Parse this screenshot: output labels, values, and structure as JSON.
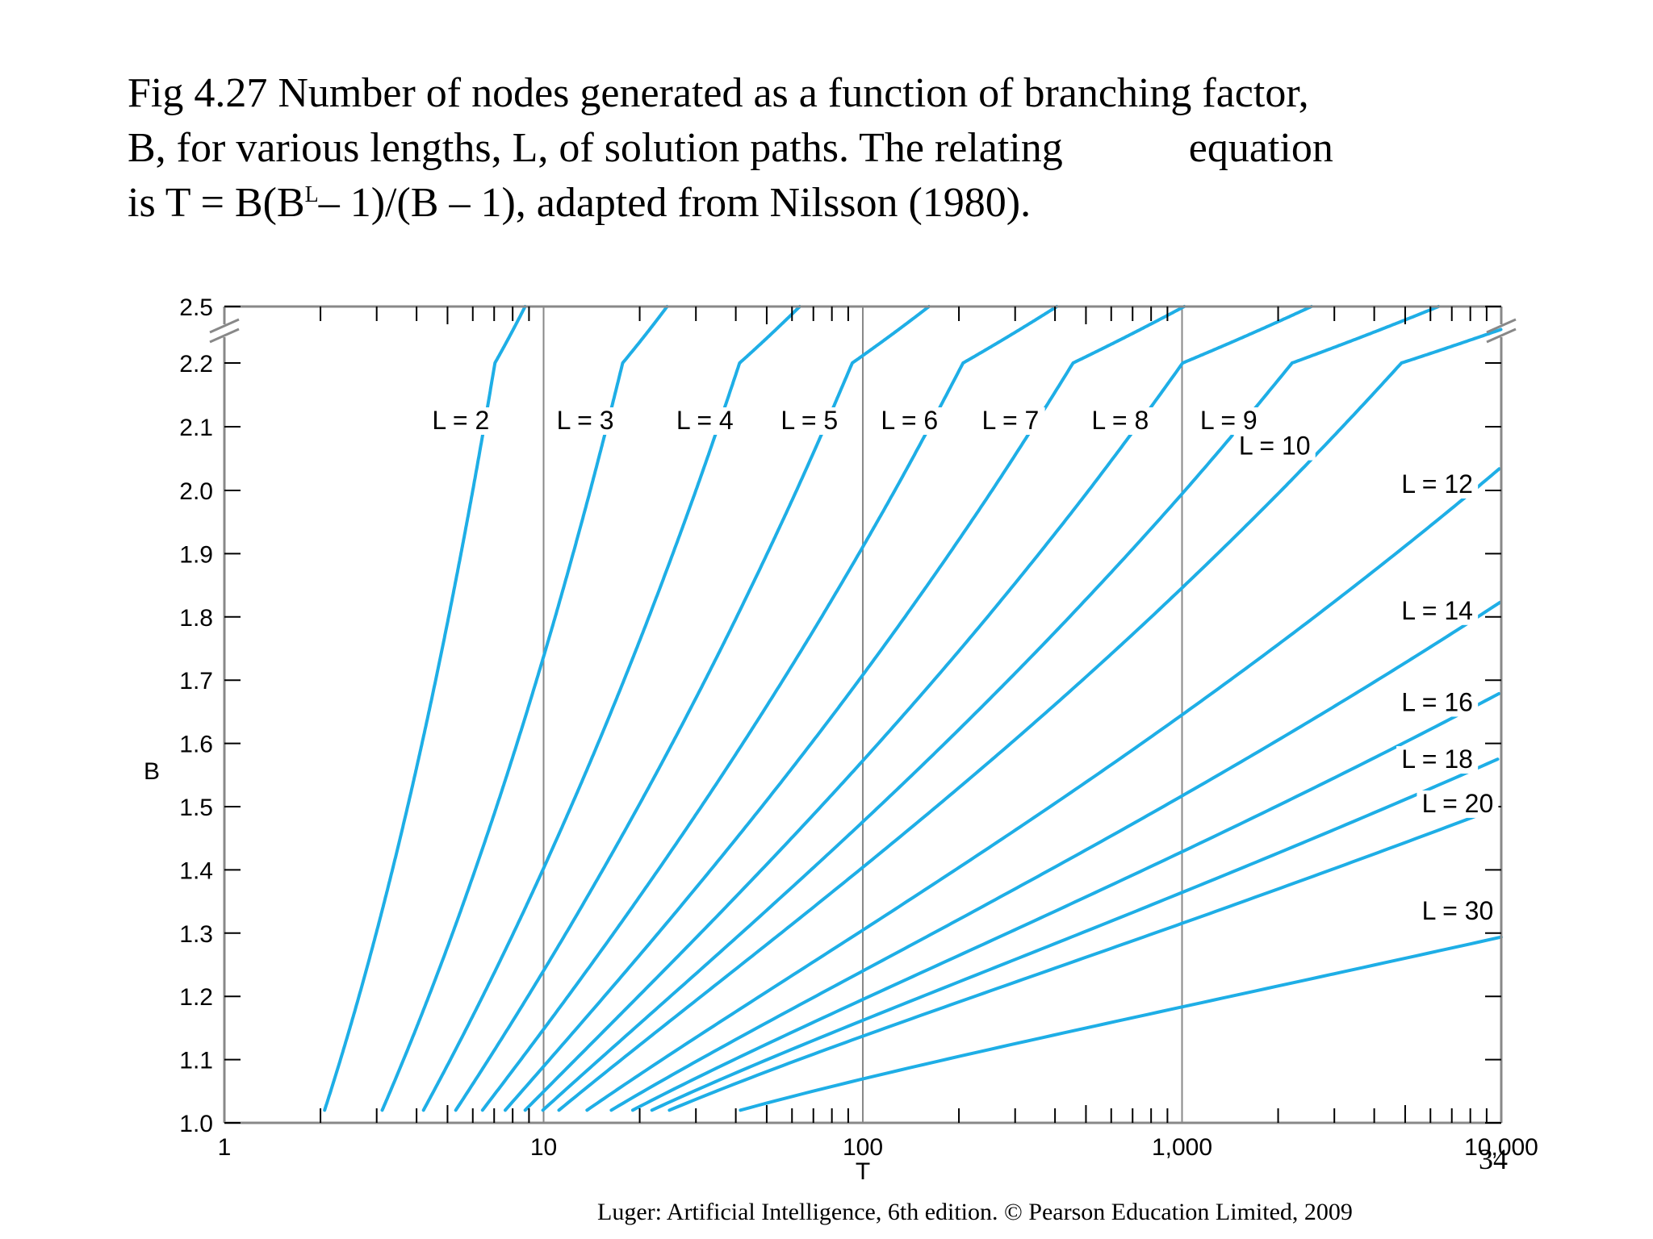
{
  "caption": {
    "line1": "Fig 4.27 Number of nodes generated as a function of branching factor,",
    "line2a": "B, for various lengths, L, of solution paths. The relating",
    "line2b": "equation",
    "line3a": "is T = B(B",
    "line3sup": "L",
    "line3b": "– 1)/(B – 1), adapted from Nilsson (1980)."
  },
  "page_number": "34",
  "footer": "Luger: Artificial Intelligence, 6th edition. © Pearson Education Limited, 2009",
  "colors": {
    "curve": "#1eaee6",
    "axis": "#888888",
    "text": "#000000"
  },
  "chart_data": {
    "type": "line",
    "xlabel": "T",
    "ylabel": "B",
    "x_scale": "log",
    "xlim": [
      1,
      10000
    ],
    "ylim": [
      1.0,
      2.5
    ],
    "y_axis_break": "between 2.2 and 2.5",
    "x_ticks": [
      {
        "value": 1,
        "label": "1"
      },
      {
        "value": 10,
        "label": "10"
      },
      {
        "value": 100,
        "label": "100"
      },
      {
        "value": 1000,
        "label": "1,000"
      },
      {
        "value": 10000,
        "label": "10,000"
      }
    ],
    "y_ticks": [
      "1.0",
      "1.1",
      "1.2",
      "1.3",
      "1.4",
      "1.5",
      "1.6",
      "1.7",
      "1.8",
      "1.9",
      "2.0",
      "2.1",
      "2.2",
      "2.5"
    ],
    "grid": "vertical lines at 10, 100, 1,000",
    "relation": "T = B(B^L – 1)/(B – 1)",
    "b_min": 1.02,
    "series": [
      {
        "L": 2,
        "name": "L = 2"
      },
      {
        "L": 3,
        "name": "L = 3"
      },
      {
        "L": 4,
        "name": "L = 4"
      },
      {
        "L": 5,
        "name": "L = 5"
      },
      {
        "L": 6,
        "name": "L = 6"
      },
      {
        "L": 7,
        "name": "L = 7"
      },
      {
        "L": 8,
        "name": "L = 8"
      },
      {
        "L": 9,
        "name": "L = 9"
      },
      {
        "L": 10,
        "name": "L = 10"
      },
      {
        "L": 12,
        "name": "L = 12"
      },
      {
        "L": 14,
        "name": "L = 14"
      },
      {
        "L": 16,
        "name": "L = 16"
      },
      {
        "L": 18,
        "name": "L = 18"
      },
      {
        "L": 20,
        "name": "L = 20"
      },
      {
        "L": 30,
        "name": "L = 30"
      }
    ],
    "labels": [
      {
        "text": "L = 2",
        "T": 5.5,
        "B": 2.1
      },
      {
        "text": "L = 3",
        "T": 13.5,
        "B": 2.1
      },
      {
        "text": "L = 4",
        "T": 32,
        "B": 2.1
      },
      {
        "text": "L = 5",
        "T": 68,
        "B": 2.1
      },
      {
        "text": "L = 6",
        "T": 140,
        "B": 2.1
      },
      {
        "text": "L = 7",
        "T": 290,
        "B": 2.1
      },
      {
        "text": "L = 8",
        "T": 640,
        "B": 2.1
      },
      {
        "text": "L = 9",
        "T": 1400,
        "B": 2.1
      },
      {
        "text": "L = 10",
        "T": 1950,
        "B": 2.06
      },
      {
        "text": "L = 12",
        "T": 6300,
        "B": 2.0
      },
      {
        "text": "L = 14",
        "T": 6300,
        "B": 1.8
      },
      {
        "text": "L = 16",
        "T": 6300,
        "B": 1.655
      },
      {
        "text": "L = 18",
        "T": 6300,
        "B": 1.565
      },
      {
        "text": "L = 20",
        "T": 7300,
        "B": 1.495
      },
      {
        "text": "L = 30",
        "T": 7300,
        "B": 1.325
      }
    ]
  }
}
